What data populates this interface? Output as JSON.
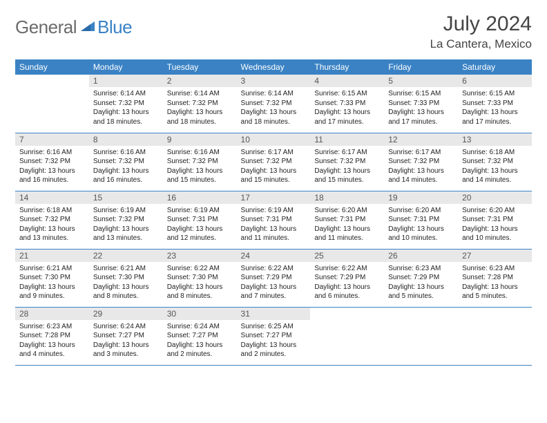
{
  "brand": {
    "part1": "General",
    "part2": "Blue"
  },
  "title": "July 2024",
  "location": "La Cantera, Mexico",
  "colors": {
    "header_bg": "#3a82c4",
    "daynum_bg": "#e8e8e8",
    "rule": "#3a82c4"
  },
  "weekdays": [
    "Sunday",
    "Monday",
    "Tuesday",
    "Wednesday",
    "Thursday",
    "Friday",
    "Saturday"
  ],
  "start_offset": 1,
  "days": [
    {
      "n": 1,
      "sunrise": "6:14 AM",
      "sunset": "7:32 PM",
      "daylight": "13 hours and 18 minutes."
    },
    {
      "n": 2,
      "sunrise": "6:14 AM",
      "sunset": "7:32 PM",
      "daylight": "13 hours and 18 minutes."
    },
    {
      "n": 3,
      "sunrise": "6:14 AM",
      "sunset": "7:32 PM",
      "daylight": "13 hours and 18 minutes."
    },
    {
      "n": 4,
      "sunrise": "6:15 AM",
      "sunset": "7:33 PM",
      "daylight": "13 hours and 17 minutes."
    },
    {
      "n": 5,
      "sunrise": "6:15 AM",
      "sunset": "7:33 PM",
      "daylight": "13 hours and 17 minutes."
    },
    {
      "n": 6,
      "sunrise": "6:15 AM",
      "sunset": "7:33 PM",
      "daylight": "13 hours and 17 minutes."
    },
    {
      "n": 7,
      "sunrise": "6:16 AM",
      "sunset": "7:32 PM",
      "daylight": "13 hours and 16 minutes."
    },
    {
      "n": 8,
      "sunrise": "6:16 AM",
      "sunset": "7:32 PM",
      "daylight": "13 hours and 16 minutes."
    },
    {
      "n": 9,
      "sunrise": "6:16 AM",
      "sunset": "7:32 PM",
      "daylight": "13 hours and 15 minutes."
    },
    {
      "n": 10,
      "sunrise": "6:17 AM",
      "sunset": "7:32 PM",
      "daylight": "13 hours and 15 minutes."
    },
    {
      "n": 11,
      "sunrise": "6:17 AM",
      "sunset": "7:32 PM",
      "daylight": "13 hours and 15 minutes."
    },
    {
      "n": 12,
      "sunrise": "6:17 AM",
      "sunset": "7:32 PM",
      "daylight": "13 hours and 14 minutes."
    },
    {
      "n": 13,
      "sunrise": "6:18 AM",
      "sunset": "7:32 PM",
      "daylight": "13 hours and 14 minutes."
    },
    {
      "n": 14,
      "sunrise": "6:18 AM",
      "sunset": "7:32 PM",
      "daylight": "13 hours and 13 minutes."
    },
    {
      "n": 15,
      "sunrise": "6:19 AM",
      "sunset": "7:32 PM",
      "daylight": "13 hours and 13 minutes."
    },
    {
      "n": 16,
      "sunrise": "6:19 AM",
      "sunset": "7:31 PM",
      "daylight": "13 hours and 12 minutes."
    },
    {
      "n": 17,
      "sunrise": "6:19 AM",
      "sunset": "7:31 PM",
      "daylight": "13 hours and 11 minutes."
    },
    {
      "n": 18,
      "sunrise": "6:20 AM",
      "sunset": "7:31 PM",
      "daylight": "13 hours and 11 minutes."
    },
    {
      "n": 19,
      "sunrise": "6:20 AM",
      "sunset": "7:31 PM",
      "daylight": "13 hours and 10 minutes."
    },
    {
      "n": 20,
      "sunrise": "6:20 AM",
      "sunset": "7:31 PM",
      "daylight": "13 hours and 10 minutes."
    },
    {
      "n": 21,
      "sunrise": "6:21 AM",
      "sunset": "7:30 PM",
      "daylight": "13 hours and 9 minutes."
    },
    {
      "n": 22,
      "sunrise": "6:21 AM",
      "sunset": "7:30 PM",
      "daylight": "13 hours and 8 minutes."
    },
    {
      "n": 23,
      "sunrise": "6:22 AM",
      "sunset": "7:30 PM",
      "daylight": "13 hours and 8 minutes."
    },
    {
      "n": 24,
      "sunrise": "6:22 AM",
      "sunset": "7:29 PM",
      "daylight": "13 hours and 7 minutes."
    },
    {
      "n": 25,
      "sunrise": "6:22 AM",
      "sunset": "7:29 PM",
      "daylight": "13 hours and 6 minutes."
    },
    {
      "n": 26,
      "sunrise": "6:23 AM",
      "sunset": "7:29 PM",
      "daylight": "13 hours and 5 minutes."
    },
    {
      "n": 27,
      "sunrise": "6:23 AM",
      "sunset": "7:28 PM",
      "daylight": "13 hours and 5 minutes."
    },
    {
      "n": 28,
      "sunrise": "6:23 AM",
      "sunset": "7:28 PM",
      "daylight": "13 hours and 4 minutes."
    },
    {
      "n": 29,
      "sunrise": "6:24 AM",
      "sunset": "7:27 PM",
      "daylight": "13 hours and 3 minutes."
    },
    {
      "n": 30,
      "sunrise": "6:24 AM",
      "sunset": "7:27 PM",
      "daylight": "13 hours and 2 minutes."
    },
    {
      "n": 31,
      "sunrise": "6:25 AM",
      "sunset": "7:27 PM",
      "daylight": "13 hours and 2 minutes."
    }
  ],
  "labels": {
    "sunrise": "Sunrise:",
    "sunset": "Sunset:",
    "daylight": "Daylight:"
  }
}
